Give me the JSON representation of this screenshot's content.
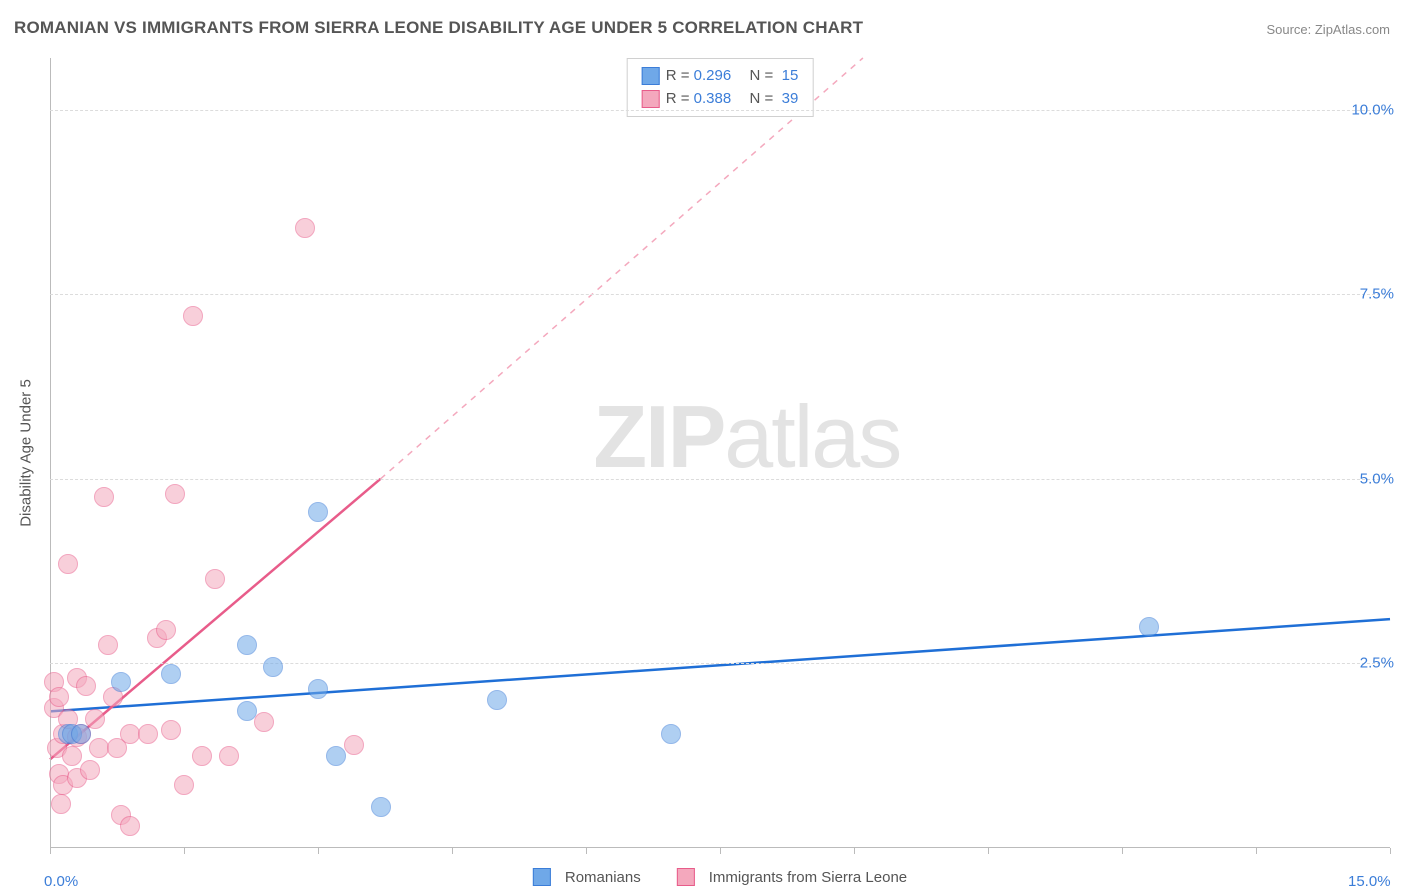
{
  "title": "ROMANIAN VS IMMIGRANTS FROM SIERRA LEONE DISABILITY AGE UNDER 5 CORRELATION CHART",
  "source": "Source: ZipAtlas.com",
  "watermark": {
    "bold": "ZIP",
    "rest": "atlas"
  },
  "chart": {
    "type": "scatter",
    "ylabel": "Disability Age Under 5",
    "xlim": [
      0,
      15
    ],
    "ylim": [
      0,
      10.7
    ],
    "yticks": [
      {
        "v": 2.5,
        "label": "2.5%"
      },
      {
        "v": 5.0,
        "label": "5.0%"
      },
      {
        "v": 7.5,
        "label": "7.5%"
      },
      {
        "v": 10.0,
        "label": "10.0%"
      }
    ],
    "xticks": [
      0,
      1.5,
      3,
      4.5,
      6,
      7.5,
      9,
      10.5,
      12,
      13.5,
      15
    ],
    "xaxis_labels": [
      {
        "v": 0,
        "label": "0.0%"
      },
      {
        "v": 15,
        "label": "15.0%"
      }
    ],
    "background_color": "#ffffff",
    "grid_color": "#dcdcdc",
    "marker_radius": 10,
    "marker_opacity": 0.55,
    "series": {
      "blue": {
        "name": "Romanians",
        "color": "#6fa8e8",
        "border": "#3b7dd8",
        "r_value": "0.296",
        "n_value": "15",
        "trend": {
          "x1": 0,
          "y1": 1.85,
          "x2": 15,
          "y2": 3.1,
          "color": "#1f6fd6",
          "width": 2.5
        },
        "points": [
          {
            "x": 0.2,
            "y": 1.55
          },
          {
            "x": 0.25,
            "y": 1.55
          },
          {
            "x": 0.35,
            "y": 1.55
          },
          {
            "x": 0.8,
            "y": 2.25
          },
          {
            "x": 1.35,
            "y": 2.35
          },
          {
            "x": 2.2,
            "y": 2.75
          },
          {
            "x": 2.2,
            "y": 1.85
          },
          {
            "x": 2.5,
            "y": 2.45
          },
          {
            "x": 3.0,
            "y": 4.55
          },
          {
            "x": 3.0,
            "y": 2.15
          },
          {
            "x": 3.2,
            "y": 1.25
          },
          {
            "x": 3.7,
            "y": 0.55
          },
          {
            "x": 5.0,
            "y": 2.0
          },
          {
            "x": 6.95,
            "y": 1.55
          },
          {
            "x": 12.3,
            "y": 3.0
          }
        ]
      },
      "pink": {
        "name": "Immigrants from Sierra Leone",
        "color": "#f4a8bd",
        "border": "#e85c8a",
        "r_value": "0.388",
        "n_value": "39",
        "trend_solid": {
          "x1": 0,
          "y1": 1.2,
          "x2": 3.7,
          "y2": 5.0,
          "color": "#e85c8a",
          "width": 2.5
        },
        "trend_dashed": {
          "x1": 3.7,
          "y1": 5.0,
          "x2": 9.1,
          "y2": 10.7,
          "color": "#f4a8bd",
          "width": 1.5
        },
        "points": [
          {
            "x": 0.05,
            "y": 2.25
          },
          {
            "x": 0.05,
            "y": 1.9
          },
          {
            "x": 0.08,
            "y": 1.35
          },
          {
            "x": 0.1,
            "y": 2.05
          },
          {
            "x": 0.1,
            "y": 1.0
          },
          {
            "x": 0.12,
            "y": 0.6
          },
          {
            "x": 0.15,
            "y": 1.55
          },
          {
            "x": 0.15,
            "y": 0.85
          },
          {
            "x": 0.2,
            "y": 3.85
          },
          {
            "x": 0.2,
            "y": 1.75
          },
          {
            "x": 0.25,
            "y": 1.25
          },
          {
            "x": 0.3,
            "y": 2.3
          },
          {
            "x": 0.3,
            "y": 1.5
          },
          {
            "x": 0.3,
            "y": 0.95
          },
          {
            "x": 0.35,
            "y": 1.55
          },
          {
            "x": 0.4,
            "y": 2.2
          },
          {
            "x": 0.45,
            "y": 1.05
          },
          {
            "x": 0.5,
            "y": 1.75
          },
          {
            "x": 0.55,
            "y": 1.35
          },
          {
            "x": 0.6,
            "y": 4.75
          },
          {
            "x": 0.65,
            "y": 2.75
          },
          {
            "x": 0.7,
            "y": 2.05
          },
          {
            "x": 0.75,
            "y": 1.35
          },
          {
            "x": 0.8,
            "y": 0.45
          },
          {
            "x": 0.9,
            "y": 1.55
          },
          {
            "x": 0.9,
            "y": 0.3
          },
          {
            "x": 1.1,
            "y": 1.55
          },
          {
            "x": 1.2,
            "y": 2.85
          },
          {
            "x": 1.3,
            "y": 2.95
          },
          {
            "x": 1.35,
            "y": 1.6
          },
          {
            "x": 1.4,
            "y": 4.8
          },
          {
            "x": 1.5,
            "y": 0.85
          },
          {
            "x": 1.6,
            "y": 7.2
          },
          {
            "x": 1.7,
            "y": 1.25
          },
          {
            "x": 1.85,
            "y": 3.65
          },
          {
            "x": 2.0,
            "y": 1.25
          },
          {
            "x": 2.4,
            "y": 1.7
          },
          {
            "x": 2.85,
            "y": 8.4
          },
          {
            "x": 3.4,
            "y": 1.4
          }
        ]
      }
    },
    "legend_top": {
      "r_label": "R =",
      "n_label": "N ="
    }
  }
}
